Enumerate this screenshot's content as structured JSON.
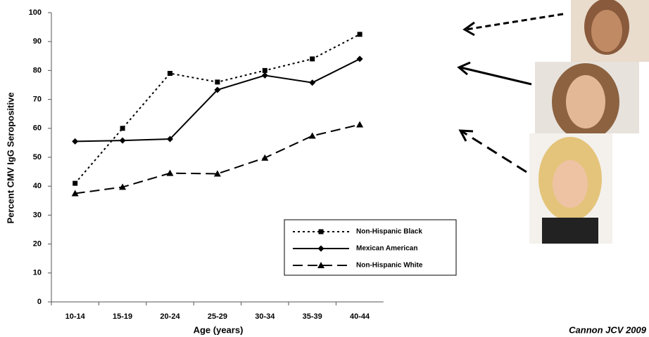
{
  "chart_data": {
    "type": "line",
    "xlabel": "Age (years)",
    "ylabel": "Percent CMV IgG Seropositive",
    "annotation": "Cannon JCV 2009",
    "categories": [
      "10-14",
      "15-19",
      "20-24",
      "25-29",
      "30-34",
      "35-39",
      "40-44"
    ],
    "series": [
      {
        "name": "Non-Hispanic Black",
        "color": "#000000",
        "dash": "dotted",
        "marker": "square",
        "values": [
          41,
          60,
          79,
          76,
          80,
          84,
          92.5
        ]
      },
      {
        "name": "Mexican American",
        "color": "#000000",
        "dash": "solid",
        "marker": "diamond",
        "values": [
          55.5,
          55.8,
          56.3,
          73.3,
          78.3,
          75.8,
          84
        ]
      },
      {
        "name": "Non-Hispanic White",
        "color": "#000000",
        "dash": "dashed",
        "marker": "triangle",
        "values": [
          37.5,
          39.7,
          44.5,
          44.3,
          49.8,
          57.4,
          61.3
        ]
      }
    ],
    "ylim": [
      0,
      100
    ],
    "yticks": [
      0,
      10,
      20,
      30,
      40,
      50,
      60,
      70,
      80,
      90,
      100
    ]
  }
}
